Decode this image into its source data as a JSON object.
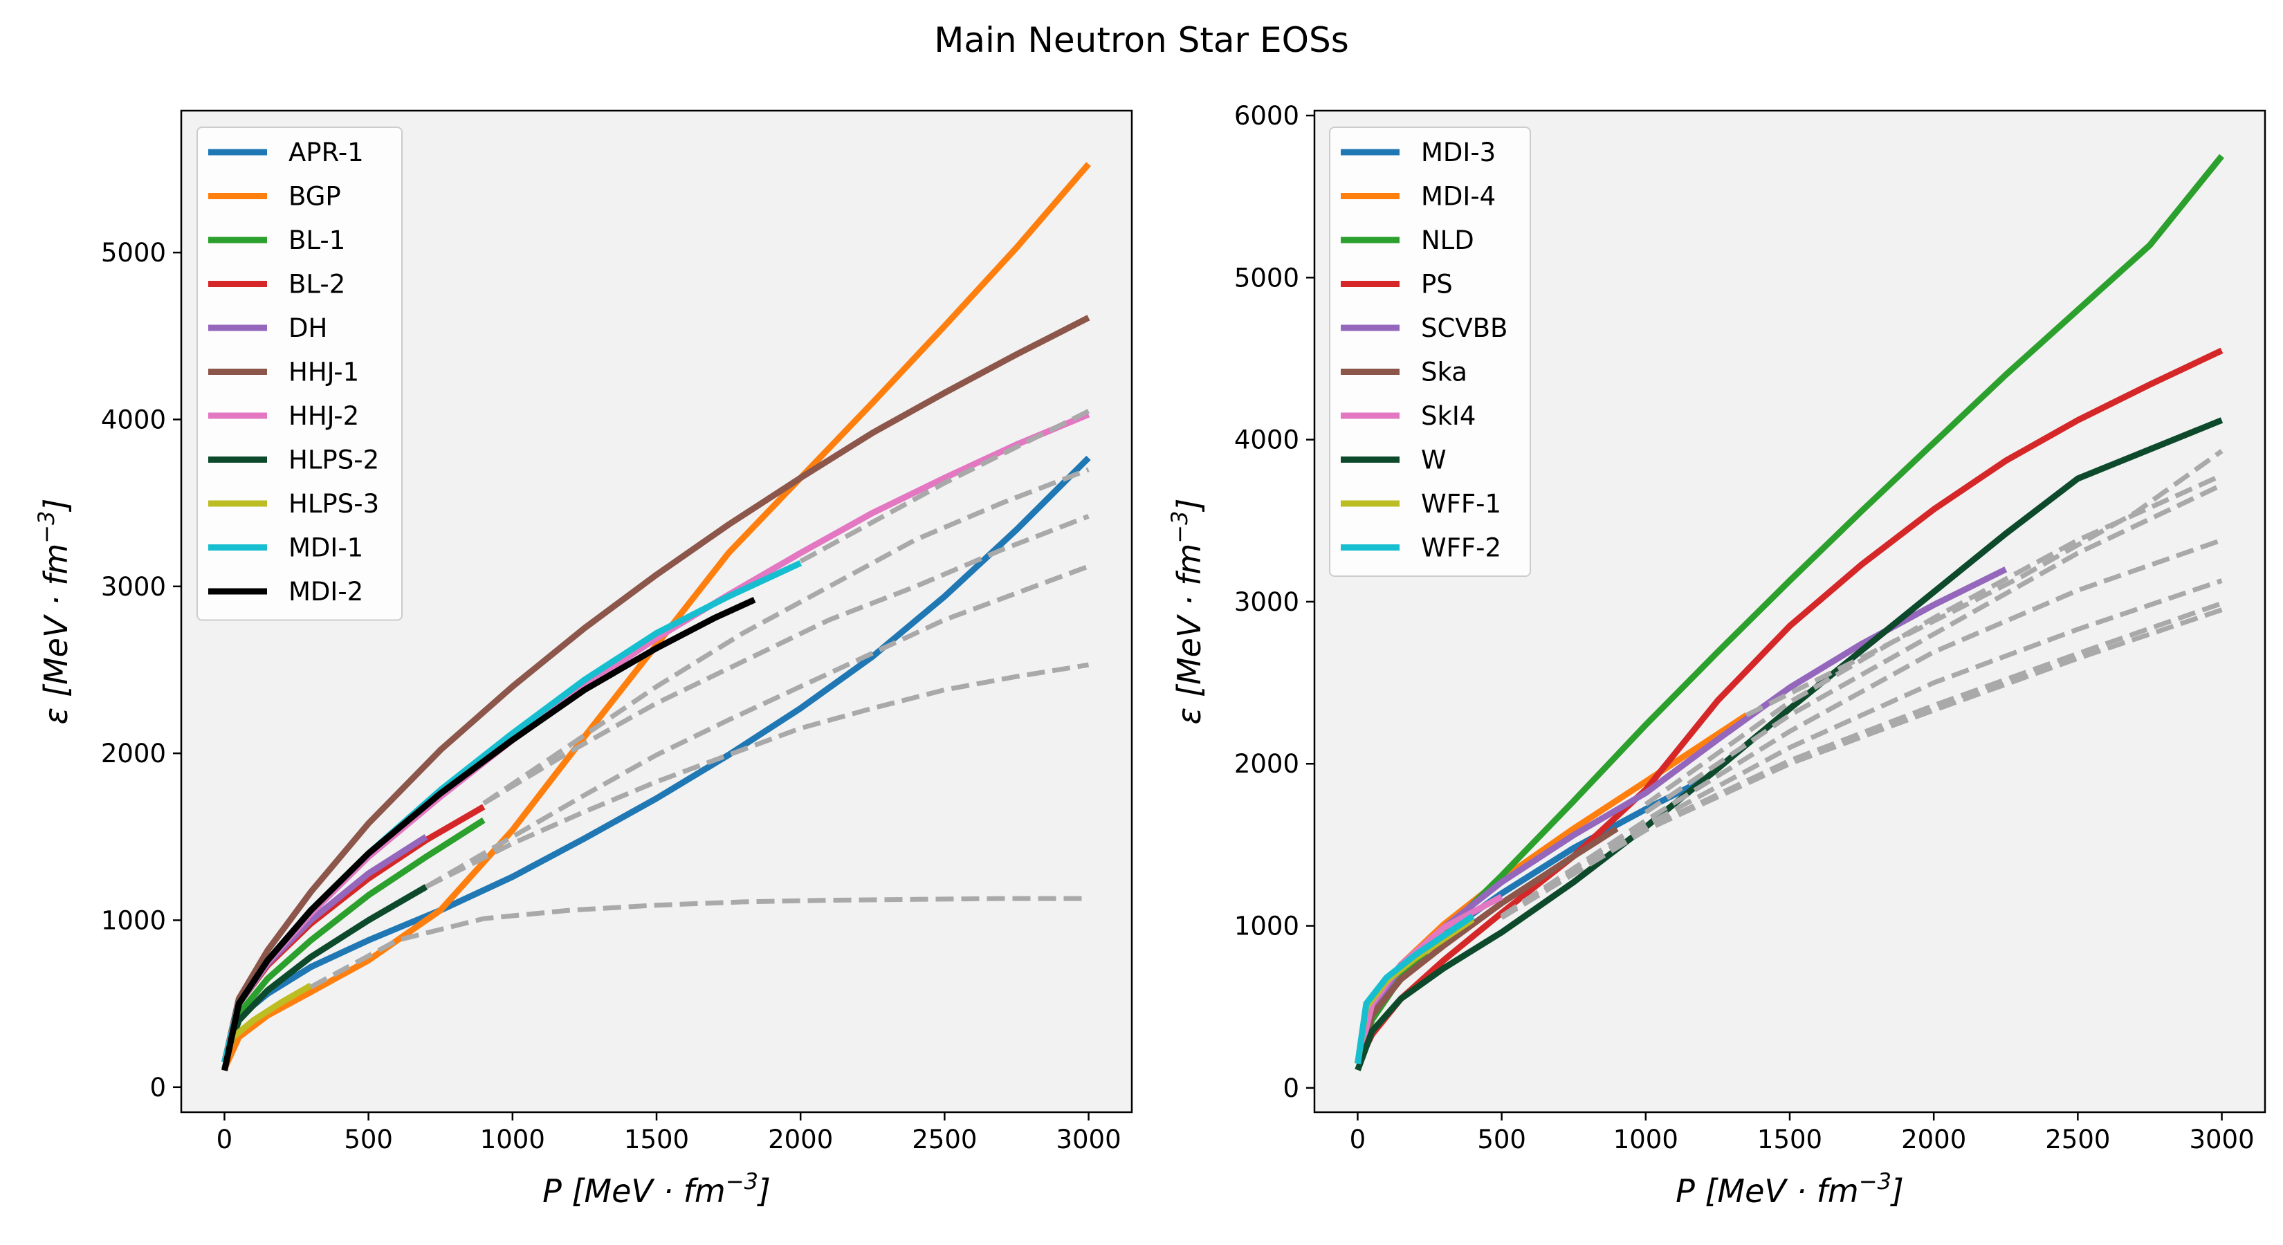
{
  "figure": {
    "title": "Main Neutron Star EOSs"
  },
  "chart_data": [
    {
      "type": "line",
      "panel": "left",
      "xlabel": "P [MeV · fm^-3]",
      "ylabel": "ε [MeV · fm^-3]",
      "xlim": [
        -150,
        3150
      ],
      "ylim": [
        -150,
        5850
      ],
      "xticks": [
        0,
        500,
        1000,
        1500,
        2000,
        2500,
        3000
      ],
      "yticks": [
        0,
        1000,
        2000,
        3000,
        4000,
        5000
      ],
      "background": "#f2f2f2",
      "grid": false,
      "legend_position": "top-left",
      "series": [
        {
          "name": "APR-1",
          "color": "#1f77b4",
          "x": [
            0,
            50,
            150,
            300,
            500,
            750,
            1000,
            1250,
            1500,
            1750,
            2000,
            2250,
            2500,
            2750,
            3000
          ],
          "y": [
            110,
            420,
            560,
            720,
            880,
            1060,
            1260,
            1490,
            1730,
            1990,
            2270,
            2580,
            2940,
            3340,
            3770
          ]
        },
        {
          "name": "BGP",
          "color": "#ff7f0e",
          "x": [
            0,
            50,
            150,
            300,
            500,
            750,
            1000,
            1250,
            1500,
            1750,
            2000,
            2250,
            2500,
            2750,
            3000
          ],
          "y": [
            110,
            300,
            430,
            570,
            760,
            1060,
            1540,
            2100,
            2650,
            3200,
            3650,
            4100,
            4560,
            5030,
            5530
          ]
        },
        {
          "name": "BL-1",
          "color": "#2ca02c",
          "x": [
            0,
            50,
            150,
            300,
            500,
            700,
            900
          ],
          "y": [
            150,
            440,
            650,
            880,
            1150,
            1380,
            1600
          ]
        },
        {
          "name": "BL-2",
          "color": "#d62728",
          "x": [
            0,
            50,
            150,
            300,
            500,
            700,
            900
          ],
          "y": [
            150,
            500,
            730,
            980,
            1250,
            1480,
            1680
          ]
        },
        {
          "name": "DH",
          "color": "#9467bd",
          "x": [
            0,
            50,
            150,
            300,
            500,
            700
          ],
          "y": [
            150,
            500,
            740,
            1000,
            1280,
            1500
          ]
        },
        {
          "name": "HHJ-1",
          "color": "#8c564b",
          "x": [
            0,
            50,
            150,
            300,
            500,
            750,
            1000,
            1250,
            1500,
            1750,
            2000,
            2250,
            2500,
            2750,
            3000
          ],
          "y": [
            150,
            530,
            820,
            1170,
            1580,
            2020,
            2400,
            2750,
            3070,
            3370,
            3650,
            3920,
            4160,
            4390,
            4610
          ]
        },
        {
          "name": "HHJ-2",
          "color": "#e377c2",
          "x": [
            0,
            50,
            150,
            300,
            500,
            750,
            1000,
            1250,
            1500,
            1750,
            2000,
            2250,
            2500,
            2750,
            3000
          ],
          "y": [
            150,
            500,
            750,
            1040,
            1380,
            1740,
            2080,
            2400,
            2690,
            2950,
            3200,
            3440,
            3650,
            3850,
            4030
          ]
        },
        {
          "name": "HLPS-2",
          "color": "#0d4a2c",
          "x": [
            0,
            50,
            150,
            300,
            500,
            700
          ],
          "y": [
            150,
            400,
            580,
            780,
            1000,
            1200
          ]
        },
        {
          "name": "HLPS-3",
          "color": "#bcbd22",
          "x": [
            0,
            30,
            100,
            200,
            300
          ],
          "y": [
            150,
            300,
            400,
            510,
            610
          ]
        },
        {
          "name": "MDI-1",
          "color": "#17becf",
          "x": [
            0,
            50,
            150,
            300,
            500,
            750,
            1000,
            1250,
            1500,
            1750,
            2000
          ],
          "y": [
            150,
            500,
            760,
            1060,
            1400,
            1780,
            2120,
            2440,
            2720,
            2940,
            3140
          ]
        },
        {
          "name": "MDI-2",
          "color": "#000000",
          "x": [
            0,
            50,
            150,
            300,
            500,
            750,
            1000,
            1250,
            1500,
            1700,
            1840
          ],
          "y": [
            100,
            500,
            760,
            1060,
            1400,
            1760,
            2080,
            2380,
            2630,
            2810,
            2920
          ]
        }
      ],
      "reference_curves": [
        {
          "x": [
            300,
            600,
            900,
            1200,
            1500,
            1800,
            2100,
            2400,
            2700,
            3000
          ],
          "y": [
            600,
            880,
            1010,
            1060,
            1090,
            1110,
            1120,
            1125,
            1130,
            1130
          ]
        },
        {
          "x": [
            700,
            1000,
            1250,
            1500,
            1750,
            2000,
            2250,
            2500,
            2750,
            3000
          ],
          "y": [
            1200,
            1460,
            1650,
            1830,
            1990,
            2150,
            2270,
            2380,
            2460,
            2530
          ]
        },
        {
          "x": [
            700,
            1000,
            1250,
            1500,
            1750,
            2000,
            2250,
            2500,
            2750,
            3000
          ],
          "y": [
            1200,
            1500,
            1750,
            1990,
            2200,
            2400,
            2600,
            2800,
            2960,
            3120
          ]
        },
        {
          "x": [
            900,
            1200,
            1500,
            1800,
            2100,
            2400,
            2700,
            3000
          ],
          "y": [
            1700,
            2010,
            2300,
            2550,
            2800,
            3000,
            3220,
            3420
          ]
        },
        {
          "x": [
            900,
            1200,
            1500,
            1800,
            2100,
            2400,
            2700,
            3000
          ],
          "y": [
            1700,
            2050,
            2400,
            2720,
            3000,
            3280,
            3500,
            3700
          ]
        },
        {
          "x": [
            2000,
            2500,
            3000
          ],
          "y": [
            3150,
            3620,
            4050
          ]
        }
      ]
    },
    {
      "type": "line",
      "panel": "right",
      "xlabel": "P [MeV · fm^-3]",
      "ylabel": "ε [MeV · fm^-3]",
      "xlim": [
        -150,
        3150
      ],
      "ylim": [
        -150,
        6030
      ],
      "xticks": [
        0,
        500,
        1000,
        1500,
        2000,
        2500,
        3000
      ],
      "yticks": [
        0,
        1000,
        2000,
        3000,
        4000,
        5000,
        6000
      ],
      "background": "#f2f2f2",
      "grid": false,
      "legend_position": "top-left",
      "series": [
        {
          "name": "MDI-3",
          "color": "#1f77b4",
          "x": [
            0,
            50,
            150,
            300,
            500,
            750,
            1000,
            1200
          ],
          "y": [
            150,
            500,
            720,
            950,
            1200,
            1480,
            1720,
            1900
          ]
        },
        {
          "name": "MDI-4",
          "color": "#ff7f0e",
          "x": [
            0,
            50,
            150,
            300,
            500,
            750,
            1000,
            1350
          ],
          "y": [
            150,
            520,
            760,
            1010,
            1290,
            1600,
            1890,
            2300
          ]
        },
        {
          "name": "NLD",
          "color": "#2ca02c",
          "x": [
            0,
            50,
            150,
            300,
            500,
            750,
            1000,
            1250,
            1500,
            1750,
            2000,
            2250,
            2500,
            2750,
            3000
          ],
          "y": [
            150,
            420,
            680,
            960,
            1310,
            1770,
            2240,
            2690,
            3130,
            3560,
            3980,
            4400,
            4800,
            5200,
            5750
          ]
        },
        {
          "name": "PS",
          "color": "#d62728",
          "x": [
            0,
            50,
            150,
            300,
            500,
            750,
            1000,
            1250,
            1500,
            1750,
            2000,
            2250,
            2500,
            2750,
            3000
          ],
          "y": [
            150,
            330,
            550,
            790,
            1080,
            1430,
            1840,
            2390,
            2850,
            3230,
            3570,
            3870,
            4120,
            4340,
            4550
          ]
        },
        {
          "name": "SCVBB",
          "color": "#9467bd",
          "x": [
            0,
            50,
            150,
            300,
            500,
            750,
            1000,
            1250,
            1500,
            1750,
            2000,
            2250
          ],
          "y": [
            150,
            500,
            740,
            990,
            1270,
            1560,
            1820,
            2150,
            2470,
            2740,
            2980,
            3200
          ]
        },
        {
          "name": "Ska",
          "color": "#8c564b",
          "x": [
            0,
            50,
            150,
            300,
            500,
            750,
            900
          ],
          "y": [
            150,
            450,
            670,
            880,
            1140,
            1430,
            1600
          ]
        },
        {
          "name": "SkI4",
          "color": "#e377c2",
          "x": [
            0,
            50,
            150,
            300,
            500
          ],
          "y": [
            150,
            520,
            760,
            990,
            1180
          ]
        },
        {
          "name": "W",
          "color": "#0d4a2c",
          "x": [
            0,
            50,
            150,
            300,
            500,
            750,
            1000,
            1250,
            1500,
            1750,
            2000,
            2250,
            2500,
            2750,
            3000
          ],
          "y": [
            110,
            350,
            550,
            740,
            960,
            1270,
            1610,
            1970,
            2340,
            2700,
            3060,
            3420,
            3760,
            3940,
            4120
          ]
        },
        {
          "name": "WFF-1",
          "color": "#bcbd22",
          "x": [
            0,
            30,
            100,
            200,
            400
          ],
          "y": [
            150,
            500,
            660,
            800,
            1040
          ]
        },
        {
          "name": "WFF-2",
          "color": "#17becf",
          "x": [
            0,
            30,
            100,
            200,
            400
          ],
          "y": [
            150,
            520,
            680,
            820,
            1060
          ]
        }
      ],
      "reference_curves": [
        {
          "x": [
            500,
            1000,
            1500,
            2000,
            2500,
            3000
          ],
          "y": [
            1050,
            1590,
            2000,
            2330,
            2650,
            2950
          ]
        },
        {
          "x": [
            500,
            1000,
            1500,
            2000,
            2500,
            3000
          ],
          "y": [
            1050,
            1600,
            2020,
            2360,
            2680,
            2990
          ]
        },
        {
          "x": [
            500,
            1000,
            1500,
            2000,
            2500,
            3000
          ],
          "y": [
            1050,
            1620,
            2100,
            2500,
            2830,
            3130
          ]
        },
        {
          "x": [
            500,
            1000,
            1500,
            2000,
            2500,
            3000
          ],
          "y": [
            1060,
            1650,
            2200,
            2690,
            3070,
            3380
          ]
        },
        {
          "x": [
            1000,
            1500,
            2000,
            2500,
            3000
          ],
          "y": [
            1700,
            2300,
            2800,
            3300,
            3720
          ]
        },
        {
          "x": [
            1000,
            1500,
            2000,
            2500,
            3000
          ],
          "y": [
            1750,
            2380,
            2900,
            3380,
            3780
          ]
        },
        {
          "x": [
            1350,
            1800,
            2300,
            2700,
            3000
          ],
          "y": [
            2300,
            2700,
            3150,
            3550,
            3930
          ]
        }
      ]
    }
  ]
}
